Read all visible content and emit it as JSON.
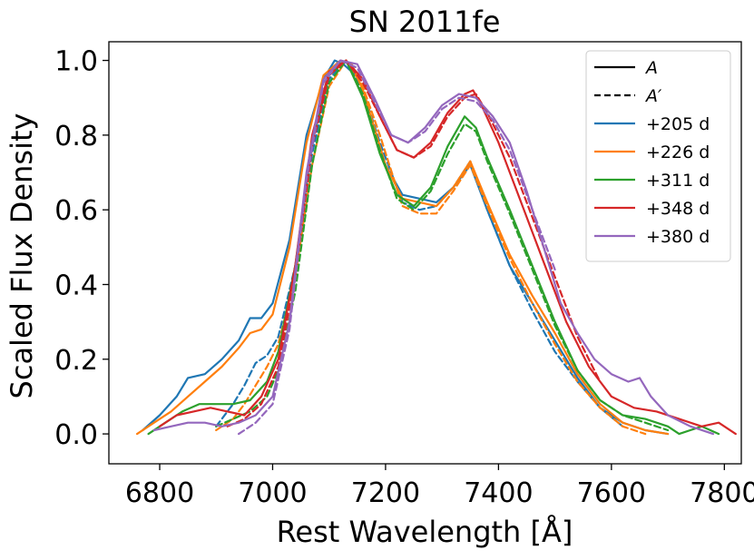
{
  "chart_data": {
    "type": "line",
    "title": "SN 2011fe",
    "xlabel": "Rest Wavelength [Å]",
    "ylabel": "Scaled Flux Density",
    "xlim": [
      6710,
      7830
    ],
    "ylim": [
      -0.08,
      1.05
    ],
    "xticks": [
      6800,
      7000,
      7200,
      7400,
      7600,
      7800
    ],
    "yticks": [
      0.0,
      0.2,
      0.4,
      0.6,
      0.8,
      1.0
    ],
    "xtick_labels": [
      "6800",
      "7000",
      "7200",
      "7400",
      "7600",
      "7800"
    ],
    "ytick_labels": [
      "0.0",
      "0.2",
      "0.4",
      "0.6",
      "0.8",
      "1.0"
    ],
    "grid": false,
    "legend_position": "top-right",
    "legend": [
      {
        "label": "A",
        "color": "#000000",
        "style": "solid"
      },
      {
        "label": "A′",
        "color": "#000000",
        "style": "dashed"
      },
      {
        "label": "+205 d",
        "color": "#1f77b4",
        "style": "solid"
      },
      {
        "label": "+226 d",
        "color": "#ff7f0e",
        "style": "solid"
      },
      {
        "label": "+311 d",
        "color": "#2ca02c",
        "style": "solid"
      },
      {
        "label": "+348 d",
        "color": "#d62728",
        "style": "solid"
      },
      {
        "label": "+380 d",
        "color": "#9467bd",
        "style": "solid"
      }
    ],
    "series": [
      {
        "name": "+205 d A",
        "epoch": "+205 d",
        "component": "A",
        "color": "#1f77b4",
        "style": "solid",
        "x": [
          6770,
          6800,
          6830,
          6850,
          6880,
          6910,
          6940,
          6960,
          6980,
          7000,
          7030,
          7060,
          7090,
          7110,
          7125,
          7140,
          7160,
          7180,
          7200,
          7230,
          7260,
          7290,
          7320,
          7350,
          7380,
          7420,
          7460,
          7500,
          7540,
          7580,
          7620,
          7660,
          7700
        ],
        "y": [
          0.01,
          0.05,
          0.1,
          0.15,
          0.16,
          0.2,
          0.25,
          0.31,
          0.31,
          0.35,
          0.52,
          0.8,
          0.95,
          1.0,
          0.99,
          0.97,
          0.9,
          0.82,
          0.72,
          0.64,
          0.63,
          0.62,
          0.66,
          0.72,
          0.6,
          0.45,
          0.35,
          0.25,
          0.15,
          0.07,
          0.03,
          0.01,
          0.0
        ]
      },
      {
        "name": "+205 d A′",
        "epoch": "+205 d",
        "component": "A′",
        "color": "#1f77b4",
        "style": "dashed",
        "x": [
          6900,
          6930,
          6950,
          6970,
          6990,
          7010,
          7040,
          7070,
          7100,
          7130,
          7160,
          7190,
          7230,
          7260,
          7290,
          7320,
          7350,
          7380,
          7420,
          7460,
          7500,
          7540,
          7580,
          7620
        ],
        "y": [
          0.02,
          0.08,
          0.13,
          0.19,
          0.21,
          0.26,
          0.45,
          0.75,
          0.95,
          1.0,
          0.92,
          0.78,
          0.62,
          0.6,
          0.61,
          0.66,
          0.73,
          0.6,
          0.45,
          0.33,
          0.22,
          0.14,
          0.07,
          0.02
        ]
      },
      {
        "name": "+226 d A",
        "epoch": "+226 d",
        "component": "A",
        "color": "#ff7f0e",
        "style": "solid",
        "x": [
          6760,
          6790,
          6820,
          6850,
          6880,
          6910,
          6940,
          6960,
          6980,
          7000,
          7030,
          7060,
          7090,
          7120,
          7140,
          7160,
          7180,
          7200,
          7230,
          7260,
          7290,
          7320,
          7350,
          7380,
          7420,
          7460,
          7500,
          7540,
          7580,
          7620,
          7660,
          7700
        ],
        "y": [
          0.0,
          0.03,
          0.06,
          0.1,
          0.14,
          0.18,
          0.23,
          0.27,
          0.28,
          0.32,
          0.5,
          0.78,
          0.96,
          1.0,
          0.99,
          0.92,
          0.82,
          0.72,
          0.63,
          0.62,
          0.61,
          0.66,
          0.73,
          0.62,
          0.48,
          0.37,
          0.27,
          0.16,
          0.08,
          0.03,
          0.01,
          0.0
        ]
      },
      {
        "name": "+226 d A′",
        "epoch": "+226 d",
        "component": "A′",
        "color": "#ff7f0e",
        "style": "dashed",
        "x": [
          6900,
          6930,
          6950,
          6970,
          6990,
          7010,
          7040,
          7070,
          7100,
          7130,
          7160,
          7190,
          7230,
          7260,
          7290,
          7320,
          7350,
          7380,
          7420,
          7460,
          7500,
          7540,
          7580,
          7620,
          7660
        ],
        "y": [
          0.01,
          0.04,
          0.08,
          0.13,
          0.18,
          0.24,
          0.42,
          0.72,
          0.93,
          1.0,
          0.93,
          0.8,
          0.61,
          0.59,
          0.59,
          0.65,
          0.72,
          0.61,
          0.47,
          0.35,
          0.24,
          0.14,
          0.07,
          0.02,
          0.0
        ]
      },
      {
        "name": "+311 d A",
        "epoch": "+311 d",
        "component": "A",
        "color": "#2ca02c",
        "style": "solid",
        "x": [
          6780,
          6810,
          6840,
          6870,
          6900,
          6930,
          6960,
          6990,
          7010,
          7040,
          7070,
          7100,
          7130,
          7160,
          7190,
          7220,
          7250,
          7280,
          7310,
          7340,
          7360,
          7380,
          7420,
          7460,
          7500,
          7540,
          7580,
          7620,
          7660,
          7700,
          7720,
          7760,
          7790
        ],
        "y": [
          0.0,
          0.03,
          0.06,
          0.08,
          0.08,
          0.08,
          0.09,
          0.14,
          0.22,
          0.45,
          0.78,
          0.96,
          1.0,
          0.9,
          0.75,
          0.64,
          0.61,
          0.66,
          0.77,
          0.85,
          0.82,
          0.74,
          0.6,
          0.45,
          0.3,
          0.17,
          0.09,
          0.05,
          0.04,
          0.02,
          0.0,
          0.02,
          0.0
        ]
      },
      {
        "name": "+311 d A′",
        "epoch": "+311 d",
        "component": "A′",
        "color": "#2ca02c",
        "style": "dashed",
        "x": [
          6900,
          6930,
          6960,
          6990,
          7010,
          7040,
          7070,
          7100,
          7130,
          7160,
          7190,
          7220,
          7250,
          7280,
          7310,
          7340,
          7360,
          7380,
          7420,
          7460,
          7500,
          7540,
          7580,
          7620,
          7660,
          7700
        ],
        "y": [
          0.02,
          0.04,
          0.06,
          0.1,
          0.17,
          0.38,
          0.72,
          0.94,
          1.0,
          0.91,
          0.76,
          0.63,
          0.6,
          0.65,
          0.75,
          0.83,
          0.81,
          0.73,
          0.59,
          0.44,
          0.29,
          0.17,
          0.09,
          0.05,
          0.03,
          0.01
        ]
      },
      {
        "name": "+348 d A",
        "epoch": "+348 d",
        "component": "A",
        "color": "#d62728",
        "style": "solid",
        "x": [
          6800,
          6830,
          6860,
          6890,
          6920,
          6950,
          6980,
          7010,
          7040,
          7070,
          7100,
          7130,
          7160,
          7190,
          7220,
          7250,
          7280,
          7310,
          7340,
          7355,
          7370,
          7400,
          7440,
          7480,
          7520,
          7560,
          7600,
          7640,
          7680,
          7720,
          7760,
          7790,
          7820
        ],
        "y": [
          0.02,
          0.05,
          0.06,
          0.07,
          0.06,
          0.05,
          0.1,
          0.2,
          0.45,
          0.8,
          0.97,
          1.0,
          0.95,
          0.85,
          0.76,
          0.74,
          0.78,
          0.86,
          0.91,
          0.92,
          0.88,
          0.78,
          0.62,
          0.46,
          0.3,
          0.18,
          0.1,
          0.07,
          0.06,
          0.04,
          0.02,
          0.03,
          0.0
        ]
      },
      {
        "name": "+348 d A′",
        "epoch": "+348 d",
        "component": "A′",
        "color": "#d62728",
        "style": "dashed",
        "x": [
          6920,
          6950,
          6980,
          7010,
          7040,
          7070,
          7100,
          7130,
          7160,
          7190,
          7220,
          7250,
          7280,
          7310,
          7340,
          7360,
          7380,
          7420,
          7460,
          7500,
          7540,
          7580
        ],
        "y": [
          0.02,
          0.04,
          0.08,
          0.18,
          0.42,
          0.77,
          0.96,
          1.0,
          0.94,
          0.85,
          0.76,
          0.74,
          0.77,
          0.85,
          0.9,
          0.91,
          0.86,
          0.74,
          0.58,
          0.42,
          0.26,
          0.14
        ]
      },
      {
        "name": "+380 d A",
        "epoch": "+380 d",
        "component": "A",
        "color": "#9467bd",
        "style": "solid",
        "x": [
          6790,
          6820,
          6850,
          6880,
          6910,
          6940,
          6970,
          7000,
          7030,
          7060,
          7090,
          7120,
          7150,
          7180,
          7210,
          7240,
          7270,
          7300,
          7330,
          7360,
          7390,
          7420,
          7450,
          7480,
          7510,
          7540,
          7570,
          7600,
          7630,
          7650,
          7670,
          7700,
          7740,
          7780
        ],
        "y": [
          0.01,
          0.02,
          0.03,
          0.03,
          0.02,
          0.03,
          0.05,
          0.1,
          0.3,
          0.7,
          0.95,
          1.0,
          0.99,
          0.9,
          0.8,
          0.78,
          0.82,
          0.88,
          0.91,
          0.9,
          0.85,
          0.78,
          0.65,
          0.5,
          0.35,
          0.27,
          0.2,
          0.16,
          0.14,
          0.15,
          0.1,
          0.05,
          0.02,
          0.0
        ]
      },
      {
        "name": "+380 d A′",
        "epoch": "+380 d",
        "component": "A′",
        "color": "#9467bd",
        "style": "dashed",
        "x": [
          6940,
          6970,
          7000,
          7030,
          7060,
          7090,
          7120,
          7150,
          7180,
          7210,
          7240,
          7270,
          7300,
          7330,
          7360,
          7390,
          7420,
          7460,
          7500
        ],
        "y": [
          0.0,
          0.03,
          0.08,
          0.28,
          0.68,
          0.94,
          1.0,
          0.98,
          0.89,
          0.8,
          0.78,
          0.81,
          0.87,
          0.9,
          0.89,
          0.84,
          0.76,
          0.6,
          0.44
        ]
      }
    ]
  }
}
